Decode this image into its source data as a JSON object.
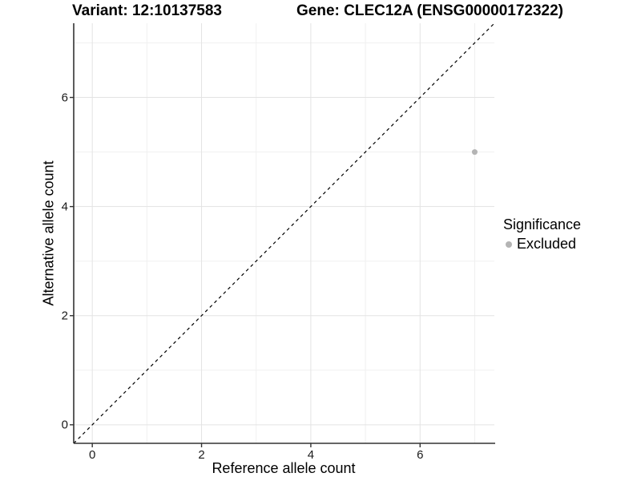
{
  "title": {
    "variant": "Variant: 12:10137583",
    "gene": "Gene: CLEC12A (ENSG00000172322)"
  },
  "legend": {
    "title": "Significance",
    "items": [
      {
        "label": "Excluded",
        "color": "#b4b4b4"
      }
    ]
  },
  "chart_data": {
    "type": "scatter",
    "title": "Variant: 12:10137583 | Gene: CLEC12A (ENSG00000172322)",
    "xlabel": "Reference allele count",
    "ylabel": "Alternative allele count",
    "xlim": [
      -0.34,
      7.36
    ],
    "ylim": [
      -0.34,
      7.36
    ],
    "x_ticks": [
      0,
      2,
      4,
      6
    ],
    "y_ticks": [
      0,
      2,
      4,
      6
    ],
    "x_minor_gridlines": [
      1,
      3,
      5,
      7
    ],
    "y_minor_gridlines": [
      1,
      3,
      5,
      7
    ],
    "grid": true,
    "legend_position": "right",
    "series": [
      {
        "name": "Excluded",
        "color": "#b4b4b4",
        "points": [
          {
            "x": 7,
            "y": 5
          }
        ]
      }
    ],
    "reference_line": {
      "type": "identity",
      "equation": "y = x",
      "style": "dashed",
      "color": "#000000"
    }
  },
  "colors": {
    "major_grid": "#e3e3e3",
    "minor_grid": "#f0f0f0",
    "axis_line": "#333333",
    "point": "#b4b4b4",
    "background": "#ffffff"
  }
}
